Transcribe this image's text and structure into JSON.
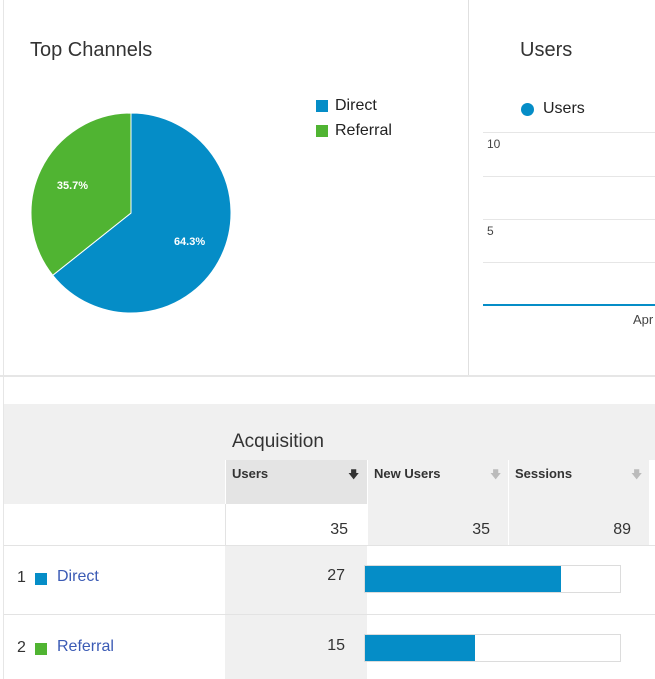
{
  "top_channels": {
    "title": "Top Channels",
    "legend": [
      {
        "label": "Direct",
        "color": "#058dc7"
      },
      {
        "label": "Referral",
        "color": "#50b432"
      }
    ],
    "chart_data": {
      "type": "pie",
      "slices": [
        {
          "label": "Direct",
          "value": 64.3,
          "display": "64.3%",
          "color": "#058dc7"
        },
        {
          "label": "Referral",
          "value": 35.7,
          "display": "35.7%",
          "color": "#50b432"
        }
      ]
    }
  },
  "users_chart": {
    "title": "Users",
    "legend_label": "Users",
    "series_color": "#058dc7",
    "y_ticks": [
      "10",
      "5"
    ],
    "x_label": "Apr"
  },
  "table": {
    "section_label": "Acquisition",
    "columns": [
      {
        "label": "Users",
        "sort_icon": "arrow-down-icon"
      },
      {
        "label": "New Users",
        "sort_icon": "arrow-down-icon"
      },
      {
        "label": "Sessions",
        "sort_icon": "arrow-down-icon"
      }
    ],
    "totals": {
      "users": "35",
      "new_users": "35",
      "sessions": "89"
    },
    "rows": [
      {
        "rank": "1",
        "channel": "Direct",
        "color": "#058dc7",
        "users": "27",
        "share": 0.77
      },
      {
        "rank": "2",
        "channel": "Referral",
        "color": "#50b432",
        "users": "15",
        "share": 0.43
      }
    ]
  }
}
